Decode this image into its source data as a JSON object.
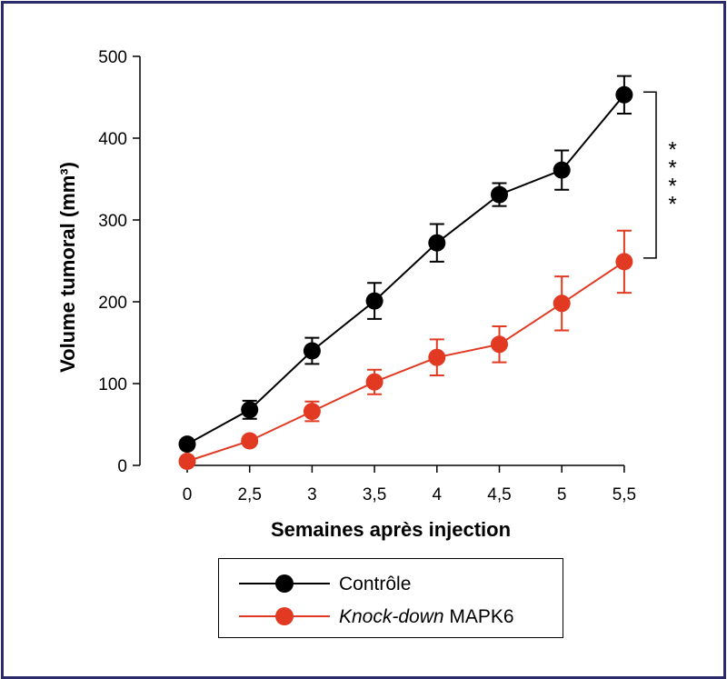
{
  "chart_data": {
    "type": "line",
    "xlabel": "Semaines après injection",
    "ylabel": "Volume tumoral (mm³)",
    "categories": [
      "0",
      "2,5",
      "3",
      "3,5",
      "4",
      "4,5",
      "5",
      "5,5"
    ],
    "ylim": [
      0,
      500
    ],
    "yticks": [
      0,
      100,
      200,
      300,
      400,
      500
    ],
    "grid": false,
    "legend_position": "bottom",
    "series": [
      {
        "name": "Contrôle",
        "color": "#000000",
        "values": [
          26,
          68,
          140,
          201,
          272,
          331,
          361,
          453
        ],
        "error": [
          0,
          11,
          16,
          22,
          23,
          14,
          24,
          23
        ]
      },
      {
        "name_italic": "Knock-down",
        "name": "MAPK6",
        "color": "#e23a22",
        "values": [
          5,
          30,
          66,
          102,
          132,
          148,
          198,
          249
        ],
        "error": [
          0,
          0,
          12,
          15,
          22,
          22,
          33,
          38
        ]
      }
    ],
    "annotation": "****"
  }
}
